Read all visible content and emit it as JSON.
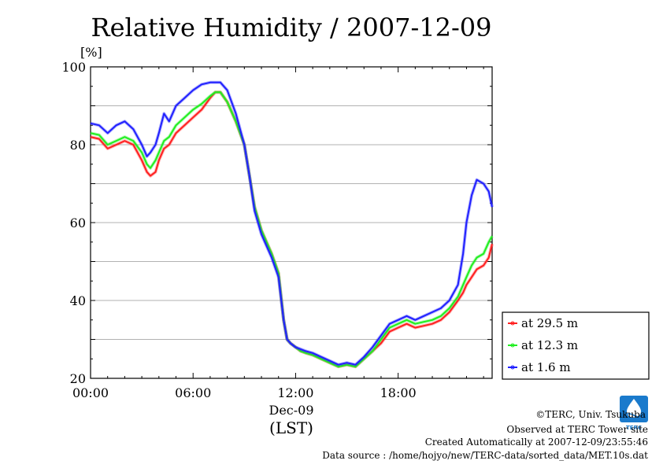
{
  "chart_data": {
    "type": "line",
    "title": "Relative Humidity / 2007-12-09",
    "ylabel": "[%]",
    "xlabel": "(LST)",
    "date_label": "Dec-09",
    "xlim": [
      0,
      23.5
    ],
    "ylim": [
      20,
      100
    ],
    "x_ticks": [
      {
        "value": 0,
        "label": "00:00"
      },
      {
        "value": 6,
        "label": "06:00"
      },
      {
        "value": 12,
        "label": "12:00"
      },
      {
        "value": 18,
        "label": "18:00"
      }
    ],
    "y_ticks": [
      20,
      40,
      60,
      80,
      100
    ],
    "grid": true,
    "legend_position": "right",
    "x_hours": [
      0,
      0.5,
      1.0,
      1.5,
      2.0,
      2.5,
      3.0,
      3.3,
      3.5,
      3.8,
      4.0,
      4.3,
      4.6,
      5.0,
      5.5,
      6.0,
      6.5,
      7.0,
      7.3,
      7.6,
      8.0,
      8.5,
      9.0,
      9.3,
      9.6,
      10.0,
      10.3,
      10.6,
      11.0,
      11.3,
      11.5,
      11.7,
      12.0,
      12.3,
      12.6,
      13.0,
      13.5,
      14.0,
      14.5,
      15.0,
      15.5,
      16.0,
      16.5,
      17.0,
      17.5,
      18.0,
      18.5,
      19.0,
      19.5,
      20.0,
      20.5,
      21.0,
      21.5,
      21.8,
      22.0,
      22.3,
      22.6,
      23.0,
      23.3,
      23.5
    ],
    "series": [
      {
        "name": "at 29.5 m",
        "color": "#ff2020",
        "values": [
          82,
          81.5,
          79,
          80,
          81,
          80,
          76,
          73,
          72,
          73,
          76,
          79,
          80,
          83,
          85,
          87,
          89,
          92,
          93.5,
          93.5,
          91,
          86,
          80,
          72,
          64,
          58,
          55,
          52,
          47,
          35,
          30,
          29,
          28,
          27,
          26.5,
          26,
          25,
          24,
          23,
          23.5,
          23,
          25,
          27,
          29,
          32,
          33,
          34,
          33,
          33.5,
          34,
          35,
          37,
          40,
          42,
          44,
          46,
          48,
          49,
          51,
          54.5
        ]
      },
      {
        "name": "at 12.3 m",
        "color": "#20ee20",
        "values": [
          83,
          82.5,
          80,
          81,
          82,
          81,
          78,
          75,
          74,
          76,
          78,
          81,
          82,
          85,
          87,
          89,
          90.5,
          92.5,
          93.5,
          93.5,
          91,
          86,
          80,
          72,
          64,
          58,
          55,
          52,
          47,
          35,
          30,
          29,
          28,
          27,
          26.5,
          26,
          25,
          24,
          23,
          23.5,
          23,
          25,
          27,
          30,
          33,
          34,
          35,
          34,
          34.5,
          35,
          36,
          38,
          41,
          44,
          46,
          49,
          51,
          52,
          55,
          56.5
        ]
      },
      {
        "name": "at 1.6 m",
        "color": "#2020ff",
        "values": [
          85.5,
          85,
          83,
          85,
          86,
          84,
          80,
          77,
          78,
          80,
          83,
          88,
          86,
          90,
          92,
          94,
          95.5,
          96,
          96,
          96,
          94,
          88,
          80,
          72,
          63,
          57,
          54,
          51,
          46,
          35,
          30,
          29,
          28,
          27.5,
          27,
          26.5,
          25.5,
          24.5,
          23.5,
          24,
          23.5,
          25.5,
          28,
          31,
          34,
          35,
          36,
          35,
          36,
          37,
          38,
          40,
          44,
          52,
          60,
          67,
          71,
          70,
          68,
          64
        ]
      }
    ]
  },
  "credits": {
    "copyright": "©TERC, Univ. Tsukuba",
    "observed": "Observed at TERC Tower site",
    "created": "Created Automatically at 2007-12-09/23:55:46",
    "source": "Data source : /home/hojyo/new/TERC-data/sorted_data/MET.10s.dat"
  },
  "logo": {
    "text": "TERC",
    "color": "#1a7acc",
    "icon": "terc-water-drop-logo"
  }
}
